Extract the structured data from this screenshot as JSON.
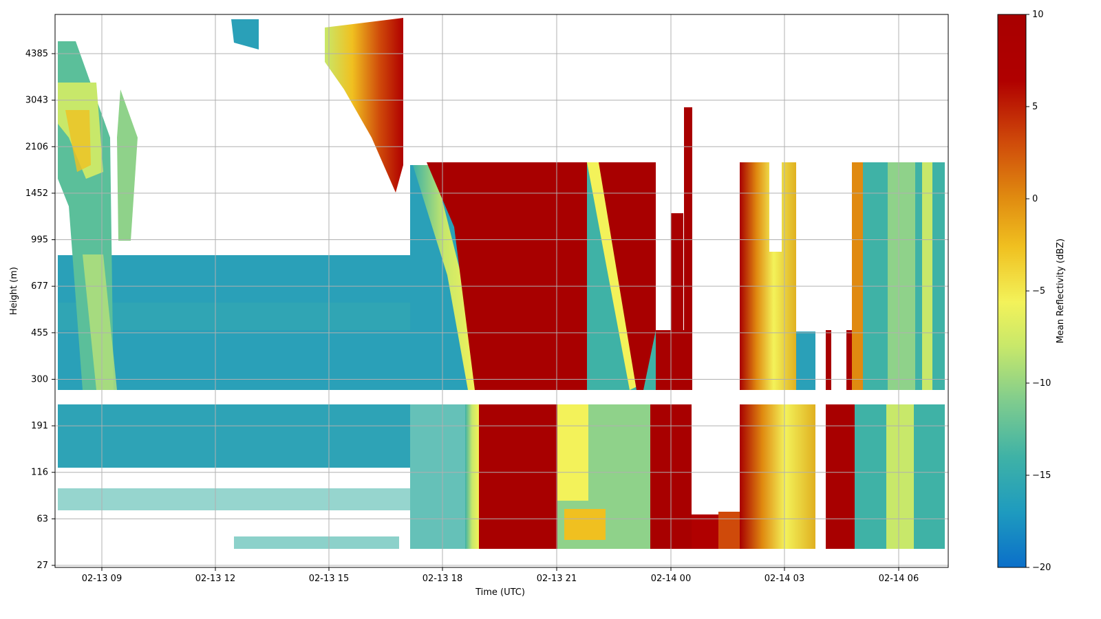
{
  "chart_data": {
    "type": "heatmap",
    "title": "",
    "xlabel": "Time (UTC)",
    "ylabel": "Height (m)",
    "x_ticks": [
      "02-13 09",
      "02-13 12",
      "02-13 15",
      "02-13 18",
      "02-13 21",
      "02-14 00",
      "02-14 03",
      "02-14 06"
    ],
    "y_ticks": [
      "27",
      "63",
      "116",
      "191",
      "300",
      "455",
      "677",
      "995",
      "1452",
      "2106",
      "3043",
      "4385"
    ],
    "x_range": [
      "02-13 07:50",
      "02-14 07:30"
    ],
    "grid": true,
    "colorbar": {
      "label": "Mean Reflectivity (dBZ)",
      "ticks": [
        "10",
        "5",
        "0",
        "−5",
        "−10",
        "−15",
        "−20"
      ],
      "range": [
        -20,
        10
      ],
      "colormap": [
        "#0b6fc9",
        "#1e9bbf",
        "#3fb2a6",
        "#7fcc8e",
        "#c8e86a",
        "#f3f25a",
        "#f0c020",
        "#e08a10",
        "#cf4a0a",
        "#b00000",
        "#a80000"
      ]
    },
    "regions": [
      {
        "time": "02-13 07:50 to 02-13 17:00",
        "height": "27 to 270 m",
        "dbz": -15
      },
      {
        "time": "02-13 07:50 to 02-13 17:00",
        "height": "300 to 800 m",
        "dbz": -15
      },
      {
        "time": "02-13 07:50 to 02-13 10:30",
        "height": "800 to 4800 m",
        "dbz": -10
      },
      {
        "time": "02-13 15:00 to 02-13 17:00",
        "height": "1500 to 5500 m",
        "dbz": 3
      },
      {
        "time": "02-13 17:00 to 02-13 18:30",
        "height": "270 to 1800 m",
        "dbz": -12
      },
      {
        "time": "02-13 18:30 to 02-13 21:50",
        "height": "40 to 1800 m",
        "dbz": 10
      },
      {
        "time": "02-13 21:50 to 02-13 23:50",
        "height": "40 to 1800 m",
        "dbz": -8
      },
      {
        "time": "02-13 23:50 to 02-14 00:30",
        "height": "40 to 2800 m",
        "dbz": 10
      },
      {
        "time": "02-14 00:30 to 02-14 01:50",
        "height": "40 to 70 m",
        "dbz": 8
      },
      {
        "time": "02-14 01:50 to 02-14 03:20",
        "height": "40 to 1800 m",
        "dbz": 0
      },
      {
        "time": "02-14 04:00 to 02-14 04:50",
        "height": "40 to 300 m",
        "dbz": 10
      },
      {
        "time": "02-14 05:00 to 02-14 07:20",
        "height": "40 to 1800 m",
        "dbz": -12
      }
    ]
  }
}
